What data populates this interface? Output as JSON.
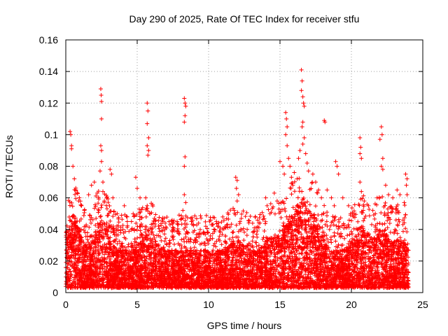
{
  "chart_data": {
    "type": "scatter",
    "title": "Day 290 of 2025, Rate Of TEC Index for receiver stfu",
    "xlabel": "GPS time / hours",
    "ylabel": "ROTI / TECUs",
    "xlim": [
      0,
      25
    ],
    "ylim": [
      0,
      0.16
    ],
    "x_ticks": [
      "0",
      "5",
      "10",
      "15",
      "20",
      "25"
    ],
    "x_tick_values": [
      0,
      5,
      10,
      15,
      20,
      25
    ],
    "y_ticks": [
      "0",
      "0.02",
      "0.04",
      "0.06",
      "0.08",
      "0.1",
      "0.12",
      "0.14",
      "0.16"
    ],
    "y_tick_values": [
      0,
      0.02,
      0.04,
      0.06,
      0.08,
      0.1,
      0.12,
      0.14,
      0.16
    ],
    "grid": true,
    "marker": "plus",
    "color": "#ff0000",
    "points": [
      [
        0.3,
        0.102
      ],
      [
        0.35,
        0.1
      ],
      [
        0.4,
        0.093
      ],
      [
        0.4,
        0.091
      ],
      [
        0.5,
        0.08
      ],
      [
        0.6,
        0.072
      ],
      [
        0.7,
        0.065
      ],
      [
        0.9,
        0.058
      ],
      [
        1.1,
        0.055
      ],
      [
        1.3,
        0.052
      ],
      [
        1.6,
        0.062
      ],
      [
        1.8,
        0.068
      ],
      [
        2.0,
        0.07
      ],
      [
        2.2,
        0.063
      ],
      [
        2.45,
        0.129
      ],
      [
        2.48,
        0.125
      ],
      [
        2.5,
        0.121
      ],
      [
        2.5,
        0.11
      ],
      [
        2.45,
        0.093
      ],
      [
        2.5,
        0.09
      ],
      [
        2.5,
        0.083
      ],
      [
        2.4,
        0.077
      ],
      [
        2.6,
        0.07
      ],
      [
        2.6,
        0.064
      ],
      [
        2.7,
        0.058
      ],
      [
        3.1,
        0.078
      ],
      [
        3.2,
        0.075
      ],
      [
        3.3,
        0.06
      ],
      [
        3.6,
        0.05
      ],
      [
        4.1,
        0.055
      ],
      [
        4.3,
        0.048
      ],
      [
        4.6,
        0.045
      ],
      [
        4.9,
        0.073
      ],
      [
        5.0,
        0.066
      ],
      [
        5.2,
        0.06
      ],
      [
        5.7,
        0.12
      ],
      [
        5.75,
        0.115
      ],
      [
        5.7,
        0.107
      ],
      [
        5.8,
        0.098
      ],
      [
        5.7,
        0.093
      ],
      [
        5.8,
        0.09
      ],
      [
        5.75,
        0.087
      ],
      [
        5.6,
        0.06
      ],
      [
        5.7,
        0.055
      ],
      [
        5.9,
        0.05
      ],
      [
        6.2,
        0.047
      ],
      [
        6.8,
        0.045
      ],
      [
        7.3,
        0.043
      ],
      [
        7.8,
        0.045
      ],
      [
        8.3,
        0.123
      ],
      [
        8.35,
        0.12
      ],
      [
        8.4,
        0.118
      ],
      [
        8.35,
        0.112
      ],
      [
        8.3,
        0.108
      ],
      [
        8.35,
        0.086
      ],
      [
        8.3,
        0.08
      ],
      [
        8.3,
        0.062
      ],
      [
        8.4,
        0.057
      ],
      [
        8.2,
        0.052
      ],
      [
        8.8,
        0.045
      ],
      [
        9.3,
        0.044
      ],
      [
        9.8,
        0.042
      ],
      [
        10.2,
        0.043
      ],
      [
        10.7,
        0.042
      ],
      [
        11.2,
        0.041
      ],
      [
        11.9,
        0.073
      ],
      [
        12.0,
        0.071
      ],
      [
        11.95,
        0.066
      ],
      [
        12.1,
        0.062
      ],
      [
        12.0,
        0.058
      ],
      [
        11.8,
        0.052
      ],
      [
        12.2,
        0.045
      ],
      [
        12.7,
        0.04
      ],
      [
        13.2,
        0.041
      ],
      [
        13.6,
        0.044
      ],
      [
        14.0,
        0.06
      ],
      [
        14.1,
        0.055
      ],
      [
        14.3,
        0.05
      ],
      [
        14.6,
        0.063
      ],
      [
        14.8,
        0.058
      ],
      [
        15.0,
        0.083
      ],
      [
        15.2,
        0.08
      ],
      [
        15.3,
        0.075
      ],
      [
        15.4,
        0.114
      ],
      [
        15.45,
        0.11
      ],
      [
        15.5,
        0.105
      ],
      [
        15.4,
        0.1
      ],
      [
        15.5,
        0.093
      ],
      [
        15.6,
        0.085
      ],
      [
        15.7,
        0.08
      ],
      [
        15.8,
        0.073
      ],
      [
        15.9,
        0.068
      ],
      [
        16.0,
        0.076
      ],
      [
        16.2,
        0.072
      ],
      [
        16.3,
        0.085
      ],
      [
        16.4,
        0.09
      ],
      [
        16.5,
        0.141
      ],
      [
        16.55,
        0.134
      ],
      [
        16.5,
        0.128
      ],
      [
        16.6,
        0.124
      ],
      [
        16.65,
        0.12
      ],
      [
        16.7,
        0.118
      ],
      [
        16.6,
        0.108
      ],
      [
        16.55,
        0.105
      ],
      [
        16.7,
        0.098
      ],
      [
        16.6,
        0.094
      ],
      [
        16.8,
        0.088
      ],
      [
        16.9,
        0.082
      ],
      [
        17.0,
        0.077
      ],
      [
        17.3,
        0.075
      ],
      [
        17.5,
        0.07
      ],
      [
        17.7,
        0.065
      ],
      [
        17.9,
        0.06
      ],
      [
        18.1,
        0.109
      ],
      [
        18.15,
        0.108
      ],
      [
        18.3,
        0.065
      ],
      [
        18.6,
        0.06
      ],
      [
        18.8,
        0.055
      ],
      [
        18.9,
        0.083
      ],
      [
        19.0,
        0.08
      ],
      [
        19.1,
        0.075
      ],
      [
        19.4,
        0.06
      ],
      [
        19.8,
        0.055
      ],
      [
        20.2,
        0.05
      ],
      [
        20.6,
        0.098
      ],
      [
        20.65,
        0.092
      ],
      [
        20.6,
        0.088
      ],
      [
        20.7,
        0.085
      ],
      [
        20.6,
        0.07
      ],
      [
        20.7,
        0.064
      ],
      [
        20.9,
        0.058
      ],
      [
        21.2,
        0.055
      ],
      [
        21.5,
        0.052
      ],
      [
        21.8,
        0.06
      ],
      [
        22.1,
        0.105
      ],
      [
        22.15,
        0.1
      ],
      [
        22.0,
        0.097
      ],
      [
        22.2,
        0.085
      ],
      [
        22.1,
        0.08
      ],
      [
        22.2,
        0.078
      ],
      [
        22.4,
        0.068
      ],
      [
        22.6,
        0.062
      ],
      [
        22.9,
        0.06
      ],
      [
        23.2,
        0.065
      ],
      [
        23.4,
        0.062
      ],
      [
        23.7,
        0.057
      ],
      [
        23.8,
        0.075
      ],
      [
        23.9,
        0.072
      ],
      [
        23.85,
        0.068
      ],
      [
        23.9,
        0.062
      ]
    ]
  }
}
